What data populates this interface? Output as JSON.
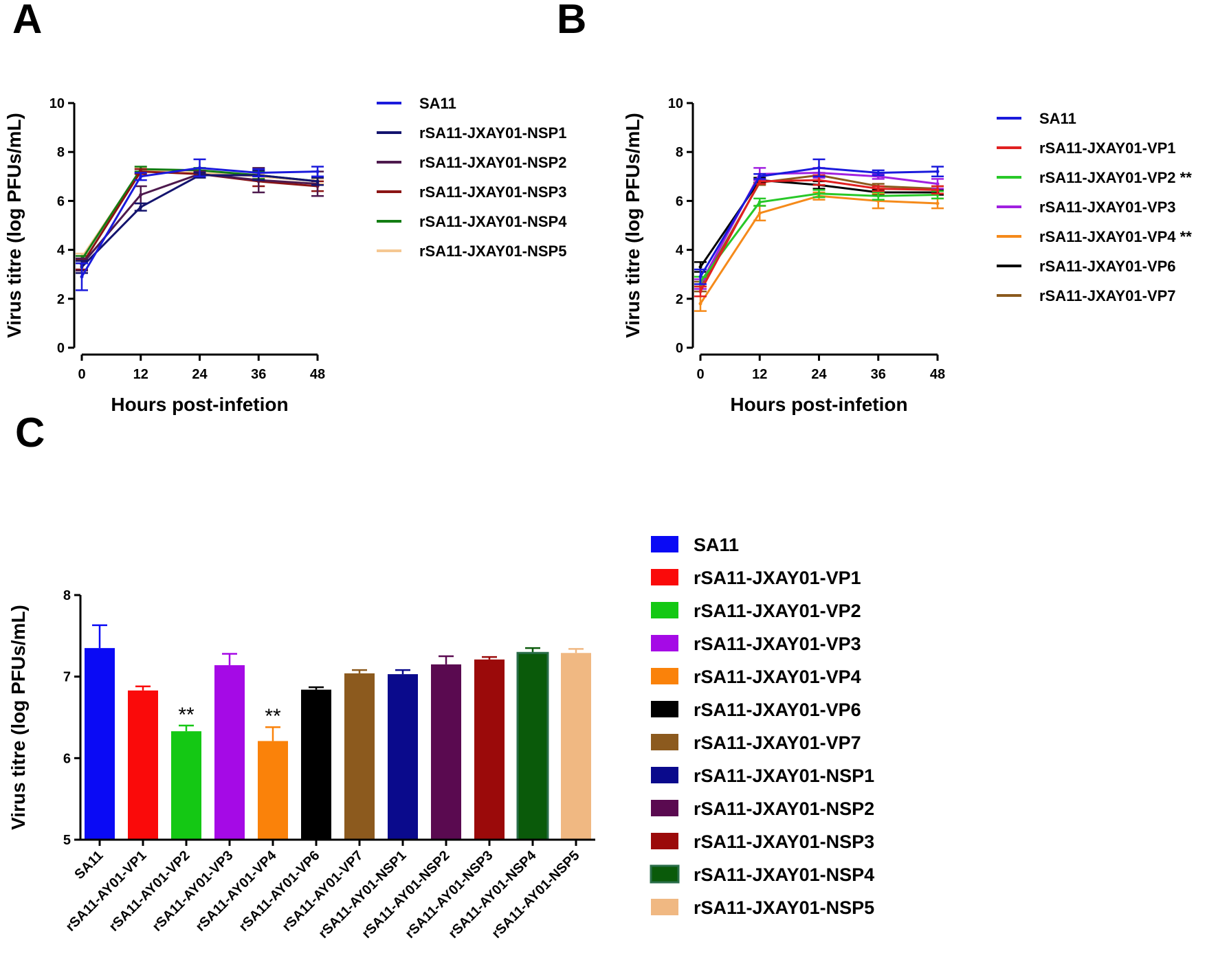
{
  "chart_data": [
    {
      "panel": "A",
      "type": "line",
      "xlabel": "Hours post-infetion",
      "ylabel": "Virus titre (log PFUs/mL)",
      "x": [
        0,
        12,
        24,
        36,
        48
      ],
      "xticks": [
        "0",
        "12",
        "24",
        "36",
        "48"
      ],
      "ylim": [
        0,
        10
      ],
      "yticks": [
        "0",
        "2",
        "4",
        "6",
        "8",
        "10"
      ],
      "legend_position": "right",
      "series": [
        {
          "name": "SA11",
          "color": "#1a1adc",
          "values": [
            2.9,
            7.0,
            7.35,
            7.15,
            7.2
          ],
          "errors": [
            0.55,
            0.15,
            0.35,
            0.15,
            0.2
          ]
        },
        {
          "name": "rSA11-JXAY01-NSP1",
          "color": "#14146e",
          "values": [
            3.3,
            5.75,
            7.05,
            7.05,
            6.8
          ],
          "errors": [
            0.25,
            0.15,
            0.1,
            0.2,
            0.15
          ]
        },
        {
          "name": "rSA11-JXAY01-NSP2",
          "color": "#4e1a4e",
          "values": [
            3.4,
            6.25,
            7.1,
            6.85,
            6.7
          ],
          "errors": [
            0.25,
            0.35,
            0.1,
            0.5,
            0.5
          ]
        },
        {
          "name": "rSA11-JXAY01-NSP3",
          "color": "#8b1414",
          "values": [
            3.4,
            7.2,
            7.1,
            6.8,
            6.6
          ],
          "errors": [
            0.2,
            0.1,
            0.1,
            0.2,
            0.2
          ]
        },
        {
          "name": "rSA11-JXAY01-NSP4",
          "color": "#137d13",
          "values": [
            3.6,
            7.3,
            7.25,
            7.05,
            6.8
          ],
          "errors": [
            0.15,
            0.1,
            0.1,
            0.15,
            0.15
          ]
        },
        {
          "name": "rSA11-JXAY01-NSP5",
          "color": "#f5c892",
          "values": [
            3.7,
            7.25,
            7.15,
            7.0,
            6.8
          ],
          "errors": [
            0.15,
            0.1,
            0.1,
            0.1,
            0.1
          ]
        }
      ]
    },
    {
      "panel": "B",
      "type": "line",
      "xlabel": "Hours post-infetion",
      "ylabel": "Virus titre (log PFUs/mL)",
      "x": [
        0,
        12,
        24,
        36,
        48
      ],
      "xticks": [
        "0",
        "12",
        "24",
        "36",
        "48"
      ],
      "ylim": [
        0,
        10
      ],
      "yticks": [
        "0",
        "2",
        "4",
        "6",
        "8",
        "10"
      ],
      "legend_position": "right",
      "series": [
        {
          "name": "SA11",
          "color": "#1a1adc",
          "values": [
            2.9,
            7.0,
            7.35,
            7.15,
            7.2
          ],
          "errors": [
            0.3,
            0.1,
            0.35,
            0.1,
            0.2
          ]
        },
        {
          "name": "rSA11-JXAY01-VP1",
          "color": "#e02020",
          "values": [
            2.3,
            6.8,
            6.85,
            6.5,
            6.45
          ],
          "errors": [
            0.2,
            0.1,
            0.2,
            0.1,
            0.15
          ]
        },
        {
          "name": "rSA11-JXAY01-VP2 **",
          "color": "#28c828",
          "values": [
            2.7,
            5.95,
            6.3,
            6.2,
            6.25
          ],
          "errors": [
            0.2,
            0.15,
            0.15,
            0.15,
            0.15
          ]
        },
        {
          "name": "rSA11-JXAY01-VP3",
          "color": "#a020e0",
          "values": [
            2.6,
            7.1,
            7.15,
            7.0,
            6.7
          ],
          "errors": [
            0.2,
            0.25,
            0.2,
            0.1,
            0.2
          ]
        },
        {
          "name": "rSA11-JXAY01-VP4 **",
          "color": "#f58a1a",
          "values": [
            1.8,
            5.5,
            6.2,
            6.0,
            5.9
          ],
          "errors": [
            0.3,
            0.3,
            0.15,
            0.3,
            0.2
          ]
        },
        {
          "name": "rSA11-JXAY01-VP6",
          "color": "#000000",
          "values": [
            3.3,
            6.85,
            6.65,
            6.35,
            6.35
          ],
          "errors": [
            0.2,
            0.1,
            0.15,
            0.1,
            0.1
          ]
        },
        {
          "name": "rSA11-JXAY01-VP7",
          "color": "#8b5a1e",
          "values": [
            2.5,
            6.75,
            7.05,
            6.6,
            6.5
          ],
          "errors": [
            0.2,
            0.1,
            0.1,
            0.1,
            0.1
          ]
        }
      ]
    },
    {
      "panel": "C",
      "type": "bar",
      "ylabel": "Virus titre (log PFUs/mL)",
      "ylim": [
        5,
        8
      ],
      "yticks": [
        "5",
        "6",
        "7",
        "8"
      ],
      "legend_position": "right",
      "categories": [
        "SA11",
        "rSA11-AY01-VP1",
        "rSA11-AY01-VP2",
        "rSA11-AY01-VP3",
        "rSA11-AY01-VP4",
        "rSA11-AY01-VP6",
        "rSA11-AY01-VP7",
        "rSA11-AY01-NSP1",
        "rSA11-AY01-NSP2",
        "rSA11-AY01-NSP3",
        "rSA11-AY01-NSP4",
        "rSA11-AY01-NSP5"
      ],
      "legend": [
        "SA11",
        "rSA11-JXAY01-VP1",
        "rSA11-JXAY01-VP2",
        "rSA11-JXAY01-VP3",
        "rSA11-JXAY01-VP4",
        "rSA11-JXAY01-VP6",
        "rSA11-JXAY01-VP7",
        "rSA11-JXAY01-NSP1",
        "rSA11-JXAY01-NSP2",
        "rSA11-JXAY01-NSP3",
        "rSA11-JXAY01-NSP4",
        "rSA11-JXAY01-NSP5"
      ],
      "values": [
        7.35,
        6.83,
        6.33,
        7.14,
        6.21,
        6.84,
        7.04,
        7.03,
        7.15,
        7.21,
        7.29,
        7.29
      ],
      "errors": [
        0.28,
        0.05,
        0.07,
        0.14,
        0.17,
        0.03,
        0.04,
        0.05,
        0.1,
        0.03,
        0.06,
        0.05
      ],
      "colors": [
        "#0a0af5",
        "#fa0a0a",
        "#14c814",
        "#a50ae6",
        "#fa820a",
        "#000000",
        "#8c5a1e",
        "#0a0a8c",
        "#5a0a50",
        "#9b0a0a",
        "#0a5a0a",
        "#f0b882"
      ],
      "significance": [
        "",
        "",
        "**",
        "",
        "**",
        "",
        "",
        "",
        "",
        "",
        "",
        ""
      ]
    }
  ],
  "panels": [
    "A",
    "B",
    "C"
  ]
}
